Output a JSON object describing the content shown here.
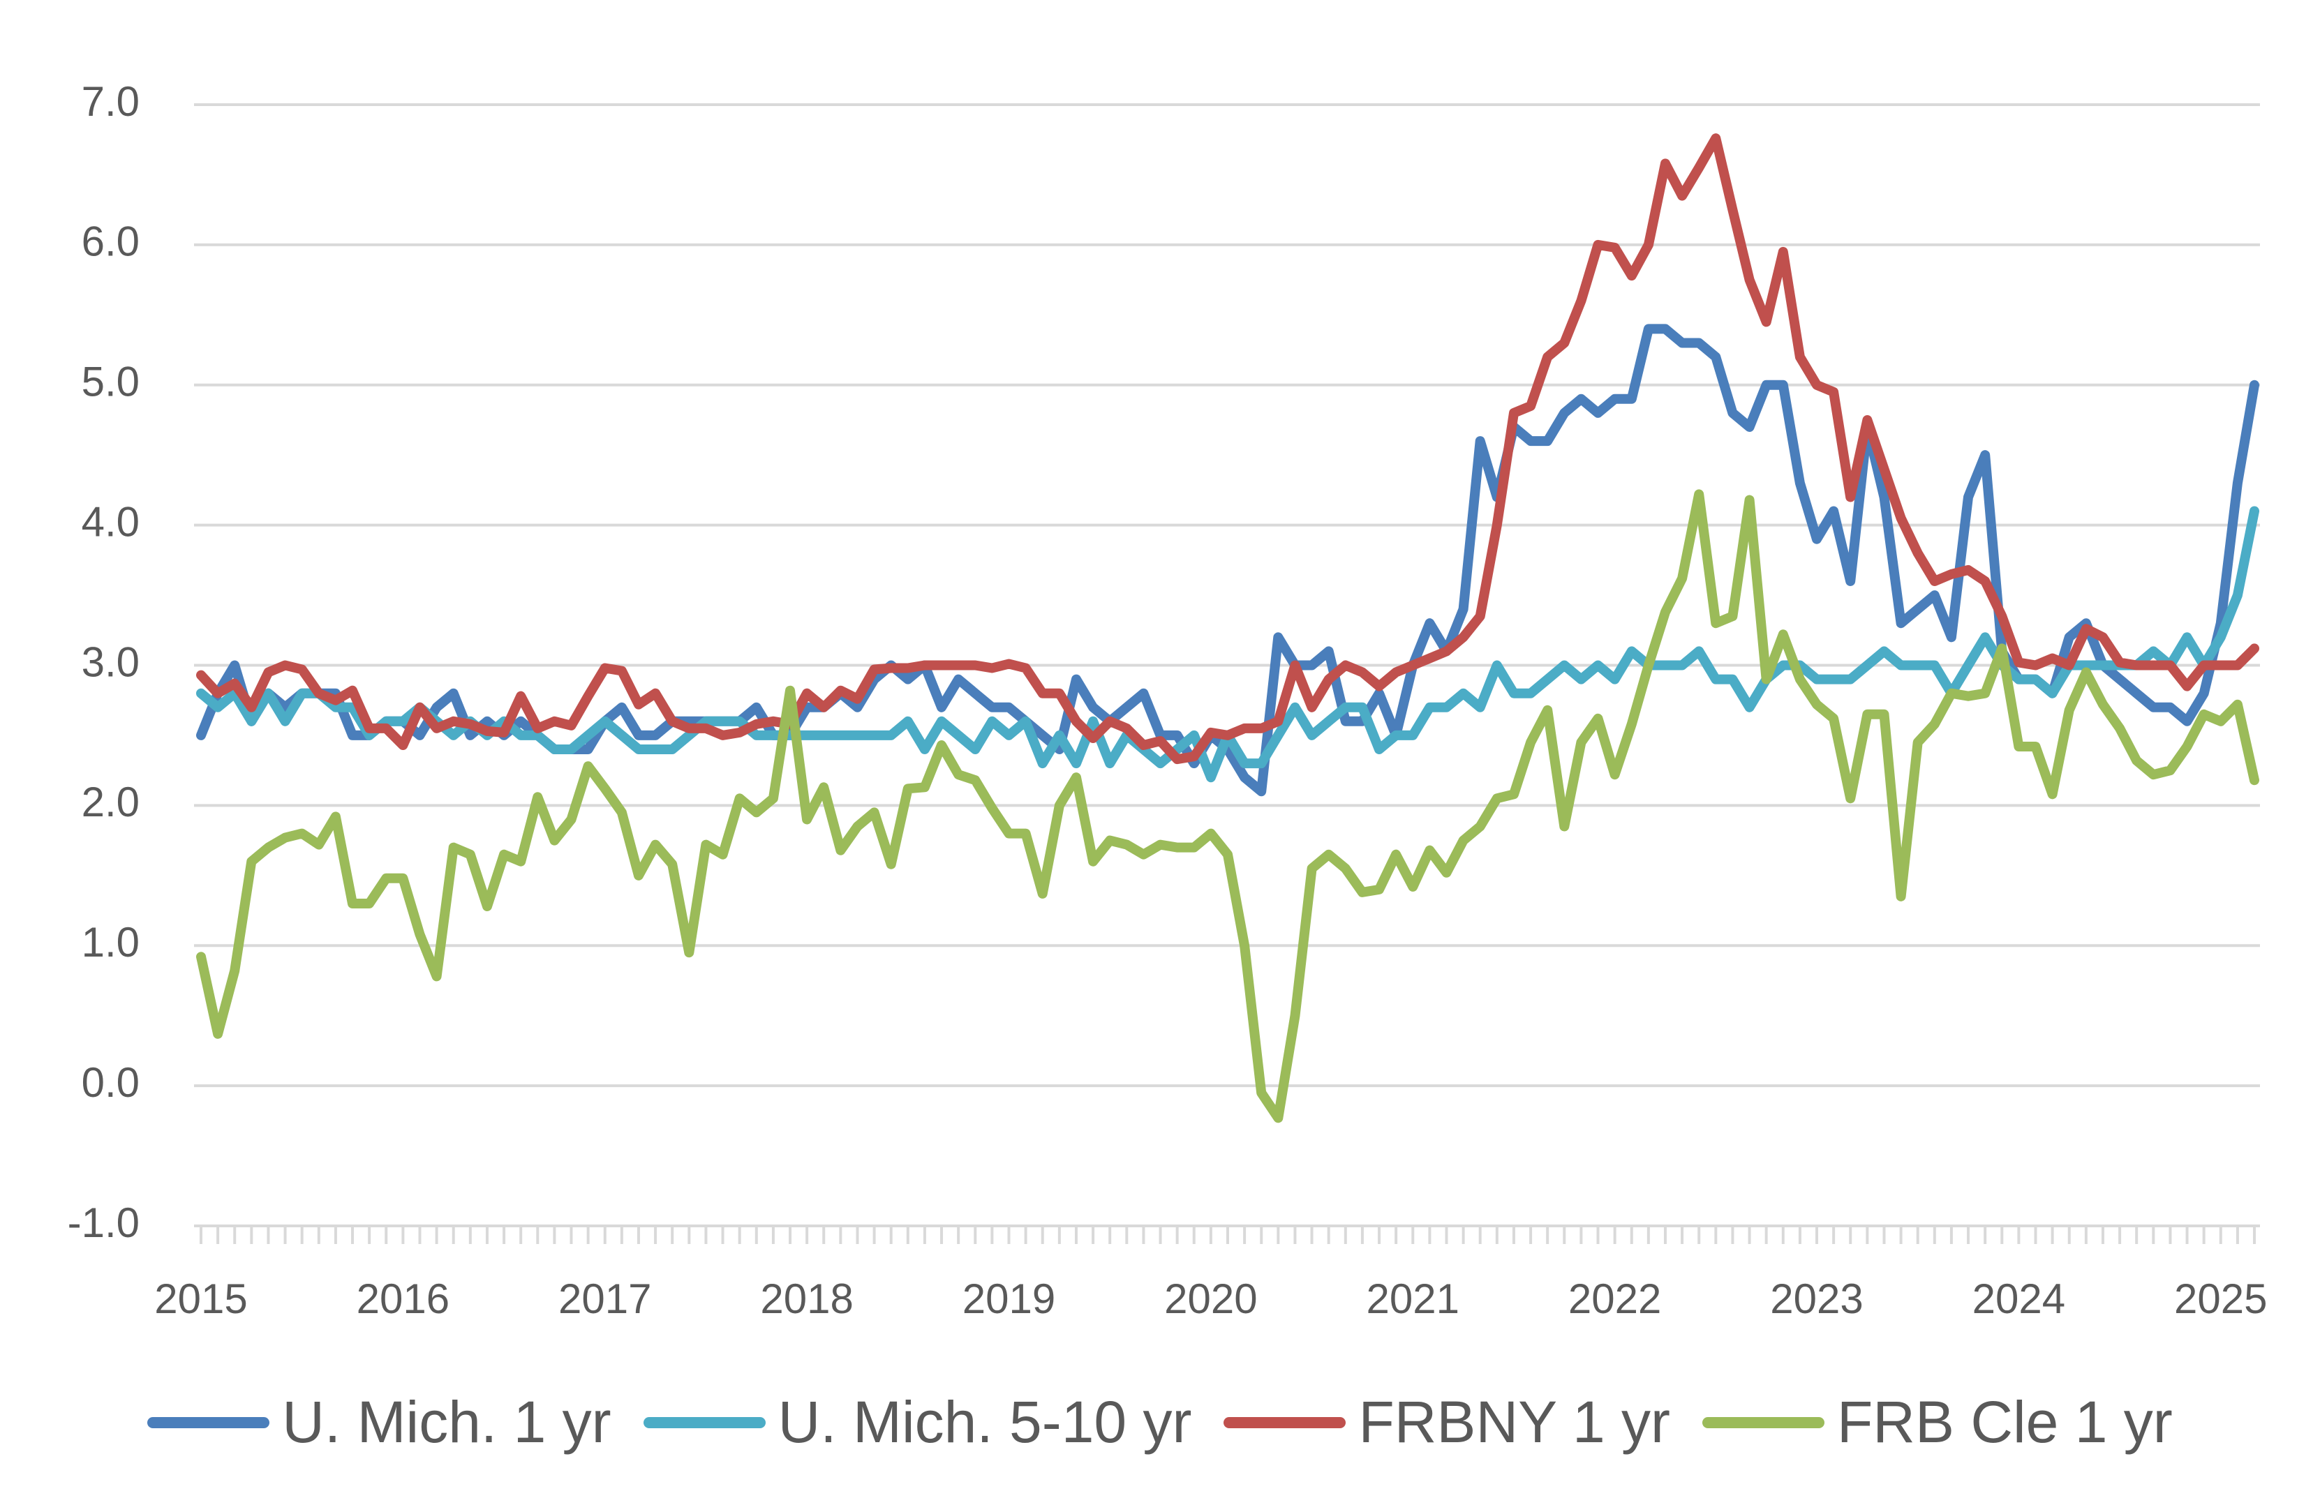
{
  "chart_data": {
    "type": "line",
    "title": "",
    "xlabel": "",
    "ylabel": "",
    "x_start": "2015-01",
    "x_end": "2025-03",
    "x_tick_labels": [
      "2015",
      "2016",
      "2017",
      "2018",
      "2019",
      "2020",
      "2021",
      "2022",
      "2023",
      "2024",
      "2025"
    ],
    "ylim": [
      -1.0,
      7.0
    ],
    "y_tick_labels": [
      "7.0",
      "6.0",
      "5.0",
      "4.0",
      "3.0",
      "2.0",
      "1.0",
      "0.0",
      "-1.0"
    ],
    "grid": true,
    "legend_position": "bottom",
    "series": [
      {
        "name": "U. Mich. 1 yr",
        "color": "#4a7ebb",
        "values": [
          2.5,
          2.8,
          3.0,
          2.6,
          2.8,
          2.7,
          2.8,
          2.8,
          2.8,
          2.5,
          2.5,
          2.6,
          2.6,
          2.5,
          2.7,
          2.8,
          2.5,
          2.6,
          2.5,
          2.6,
          2.5,
          2.4,
          2.4,
          2.4,
          2.6,
          2.7,
          2.5,
          2.5,
          2.6,
          2.6,
          2.6,
          2.6,
          2.6,
          2.7,
          2.5,
          2.5,
          2.7,
          2.7,
          2.8,
          2.7,
          2.9,
          3.0,
          2.9,
          3.0,
          2.7,
          2.9,
          2.8,
          2.7,
          2.7,
          2.6,
          2.5,
          2.4,
          2.9,
          2.7,
          2.6,
          2.7,
          2.8,
          2.5,
          2.5,
          2.3,
          2.5,
          2.4,
          2.2,
          2.1,
          3.2,
          3.0,
          3.0,
          3.1,
          2.6,
          2.6,
          2.8,
          2.5,
          3.0,
          3.3,
          3.1,
          3.4,
          4.6,
          4.2,
          4.7,
          4.6,
          4.6,
          4.8,
          4.9,
          4.8,
          4.9,
          4.9,
          5.4,
          5.4,
          5.3,
          5.3,
          5.2,
          4.8,
          4.7,
          5.0,
          5.0,
          4.3,
          3.9,
          4.1,
          3.6,
          4.7,
          4.2,
          3.3,
          3.4,
          3.5,
          3.2,
          4.2,
          4.5,
          3.1,
          2.9,
          2.9,
          2.8,
          3.2,
          3.3,
          3.0,
          2.9,
          2.8,
          2.7,
          2.7,
          2.6,
          2.8,
          3.3,
          4.3,
          5.0
        ]
      },
      {
        "name": "U. Mich. 5-10 yr",
        "color": "#4bacc6",
        "values": [
          2.8,
          2.7,
          2.8,
          2.6,
          2.8,
          2.6,
          2.8,
          2.8,
          2.7,
          2.7,
          2.5,
          2.6,
          2.6,
          2.7,
          2.6,
          2.5,
          2.6,
          2.5,
          2.6,
          2.5,
          2.5,
          2.4,
          2.4,
          2.5,
          2.6,
          2.5,
          2.4,
          2.4,
          2.4,
          2.5,
          2.6,
          2.6,
          2.6,
          2.5,
          2.5,
          2.5,
          2.5,
          2.5,
          2.5,
          2.5,
          2.5,
          2.5,
          2.6,
          2.4,
          2.6,
          2.5,
          2.4,
          2.6,
          2.5,
          2.6,
          2.3,
          2.5,
          2.3,
          2.6,
          2.3,
          2.5,
          2.4,
          2.3,
          2.4,
          2.5,
          2.2,
          2.5,
          2.3,
          2.3,
          2.5,
          2.7,
          2.5,
          2.6,
          2.7,
          2.7,
          2.4,
          2.5,
          2.5,
          2.7,
          2.7,
          2.8,
          2.7,
          3.0,
          2.8,
          2.8,
          2.9,
          3.0,
          2.9,
          3.0,
          2.9,
          3.1,
          3.0,
          3.0,
          3.0,
          3.1,
          2.9,
          2.9,
          2.7,
          2.9,
          3.0,
          3.0,
          2.9,
          2.9,
          2.9,
          3.0,
          3.1,
          3.0,
          3.0,
          3.0,
          2.8,
          3.0,
          3.2,
          3.0,
          2.9,
          2.9,
          2.8,
          3.0,
          3.0,
          3.0,
          3.0,
          3.0,
          3.1,
          3.0,
          3.2,
          3.0,
          3.2,
          3.5,
          4.1
        ]
      },
      {
        "name": "FRBNY 1 yr",
        "color": "#c0504d",
        "values": [
          2.93,
          2.8,
          2.87,
          2.7,
          2.95,
          3.0,
          2.97,
          2.8,
          2.75,
          2.82,
          2.55,
          2.55,
          2.43,
          2.7,
          2.55,
          2.6,
          2.58,
          2.53,
          2.52,
          2.78,
          2.55,
          2.6,
          2.57,
          2.78,
          2.98,
          2.96,
          2.72,
          2.8,
          2.6,
          2.55,
          2.55,
          2.5,
          2.52,
          2.58,
          2.6,
          2.58,
          2.8,
          2.7,
          2.82,
          2.76,
          2.97,
          2.98,
          2.98,
          3.0,
          3.0,
          3.0,
          3.0,
          2.98,
          3.01,
          2.98,
          2.8,
          2.8,
          2.6,
          2.48,
          2.6,
          2.55,
          2.43,
          2.46,
          2.33,
          2.35,
          2.52,
          2.5,
          2.55,
          2.55,
          2.6,
          3.0,
          2.7,
          2.9,
          3.0,
          2.95,
          2.85,
          2.95,
          3.0,
          3.05,
          3.1,
          3.2,
          3.35,
          4.0,
          4.8,
          4.85,
          5.2,
          5.3,
          5.6,
          6.0,
          5.98,
          5.78,
          6.0,
          6.58,
          6.35,
          6.55,
          6.76,
          6.25,
          5.75,
          5.45,
          5.95,
          5.2,
          5.0,
          4.95,
          4.2,
          4.75,
          4.4,
          4.05,
          3.8,
          3.6,
          3.65,
          3.68,
          3.6,
          3.35,
          3.02,
          3.0,
          3.05,
          3.0,
          3.26,
          3.2,
          3.02,
          3.0,
          3.0,
          3.0,
          2.85,
          3.0,
          3.0,
          3.0,
          3.12
        ]
      },
      {
        "name": "FRB Cle 1 yr",
        "color": "#9bbb59",
        "values": [
          0.92,
          0.37,
          0.82,
          1.6,
          1.7,
          1.77,
          1.8,
          1.72,
          1.92,
          1.3,
          1.3,
          1.48,
          1.48,
          1.08,
          0.78,
          1.7,
          1.65,
          1.28,
          1.65,
          1.6,
          2.06,
          1.75,
          1.9,
          2.28,
          2.12,
          1.95,
          1.5,
          1.72,
          1.58,
          0.95,
          1.72,
          1.65,
          2.05,
          1.95,
          2.05,
          2.82,
          1.9,
          2.13,
          1.68,
          1.85,
          1.95,
          1.58,
          2.12,
          2.13,
          2.43,
          2.22,
          2.18,
          1.98,
          1.8,
          1.8,
          1.37,
          2.0,
          2.2,
          1.6,
          1.75,
          1.72,
          1.65,
          1.72,
          1.7,
          1.7,
          1.8,
          1.65,
          1.0,
          -0.05,
          -0.23,
          0.5,
          1.55,
          1.65,
          1.55,
          1.38,
          1.4,
          1.65,
          1.42,
          1.68,
          1.52,
          1.75,
          1.85,
          2.05,
          2.08,
          2.45,
          2.68,
          1.85,
          2.45,
          2.62,
          2.22,
          2.58,
          3.0,
          3.38,
          3.62,
          4.22,
          3.3,
          3.35,
          4.18,
          2.9,
          3.22,
          2.9,
          2.72,
          2.62,
          2.05,
          2.65,
          2.65,
          1.35,
          2.45,
          2.58,
          2.8,
          2.78,
          2.8,
          3.12,
          2.42,
          2.42,
          2.08,
          2.68,
          2.95,
          2.72,
          2.55,
          2.32,
          2.22,
          2.25,
          2.42,
          2.65,
          2.6,
          2.72,
          2.18
        ]
      }
    ]
  }
}
